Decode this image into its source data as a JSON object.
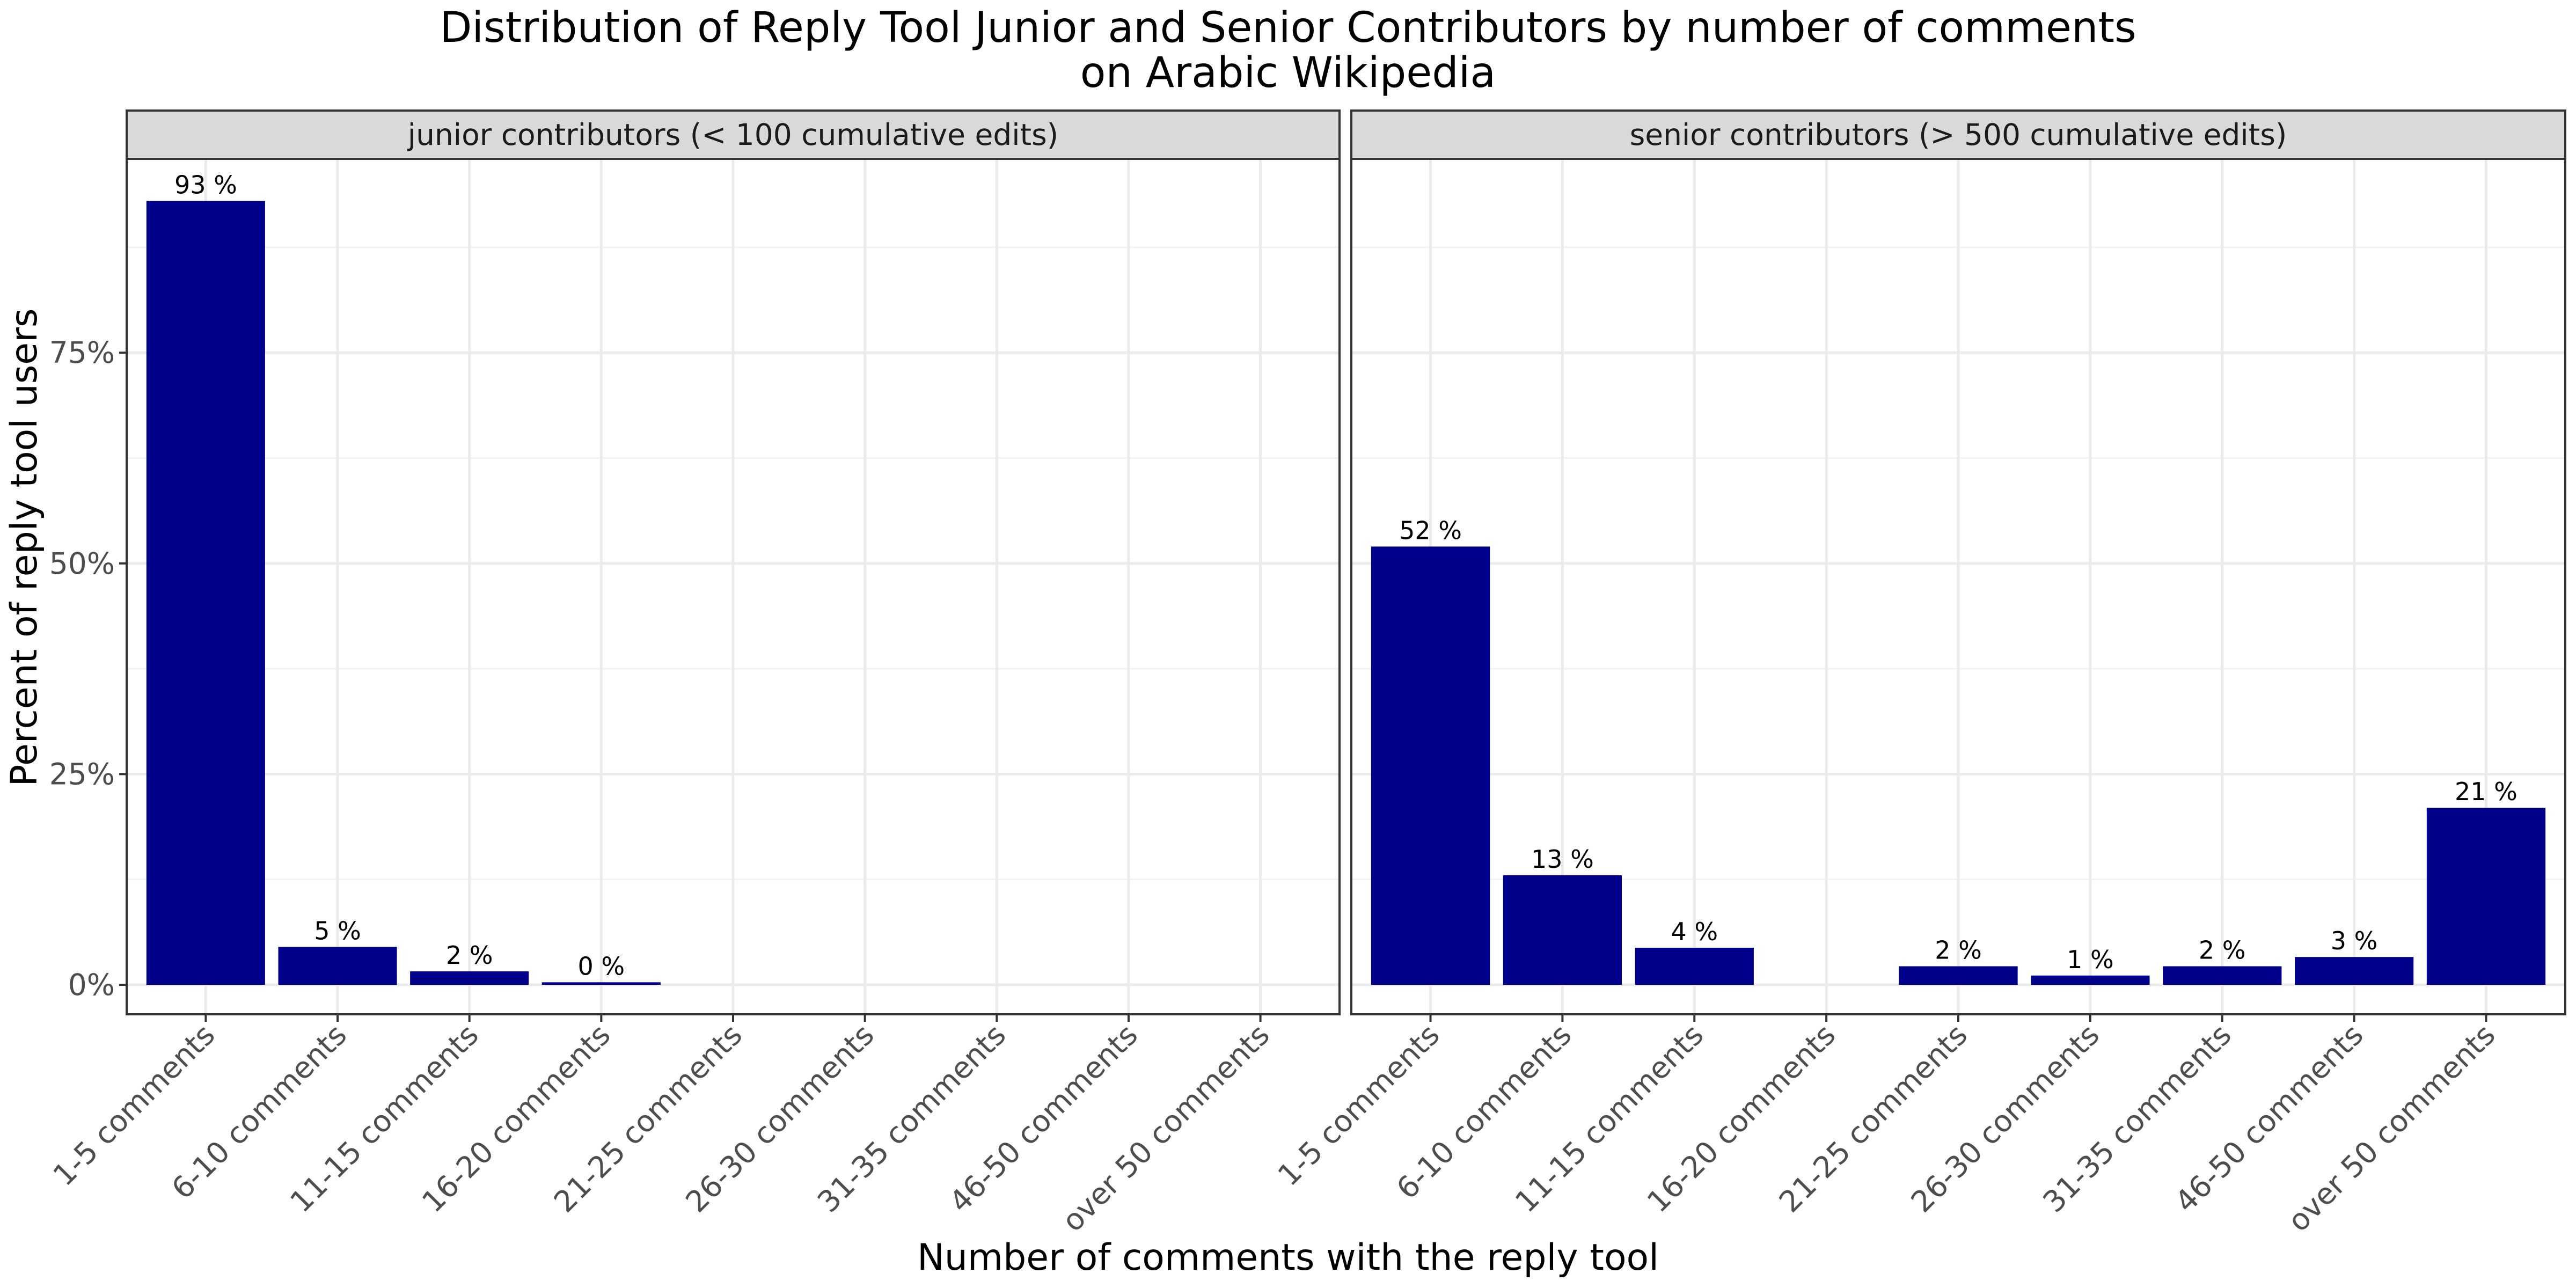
{
  "chart_data": {
    "type": "bar",
    "title_line1": "Distribution of Reply Tool Junior and Senior Contributors by number of comments",
    "title_line2": "on Arabic Wikipedia",
    "xlabel": "Number of comments with the reply tool",
    "ylabel": "Percent of reply tool users",
    "ylim": [
      -3.5,
      98
    ],
    "y_ticks": [
      0,
      25,
      50,
      75
    ],
    "y_tick_labels": [
      "0%",
      "25%",
      "50%",
      "75%"
    ],
    "grid": true,
    "bar_color": "#00008B",
    "categories": [
      "1-5 comments",
      "6-10 comments",
      "11-15 comments",
      "16-20 comments",
      "21-25 comments",
      "26-30 comments",
      "31-35 comments",
      "46-50 comments",
      "over 50 comments"
    ],
    "facets": [
      {
        "label": "junior contributors (< 100 cumulative edits)",
        "values": [
          93,
          4.5,
          1.6,
          0.3,
          null,
          null,
          null,
          null,
          null
        ],
        "labels": [
          "93 %",
          "5 %",
          "2 %",
          "0 %",
          "",
          "",
          "",
          "",
          ""
        ]
      },
      {
        "label": "senior contributors (> 500 cumulative edits)",
        "values": [
          52,
          13,
          4.4,
          null,
          2.2,
          1.1,
          2.2,
          3.3,
          21
        ],
        "labels": [
          "52 %",
          "13 %",
          "4 %",
          "",
          "2 %",
          "1 %",
          "2 %",
          "3 %",
          "21 %"
        ]
      }
    ]
  }
}
